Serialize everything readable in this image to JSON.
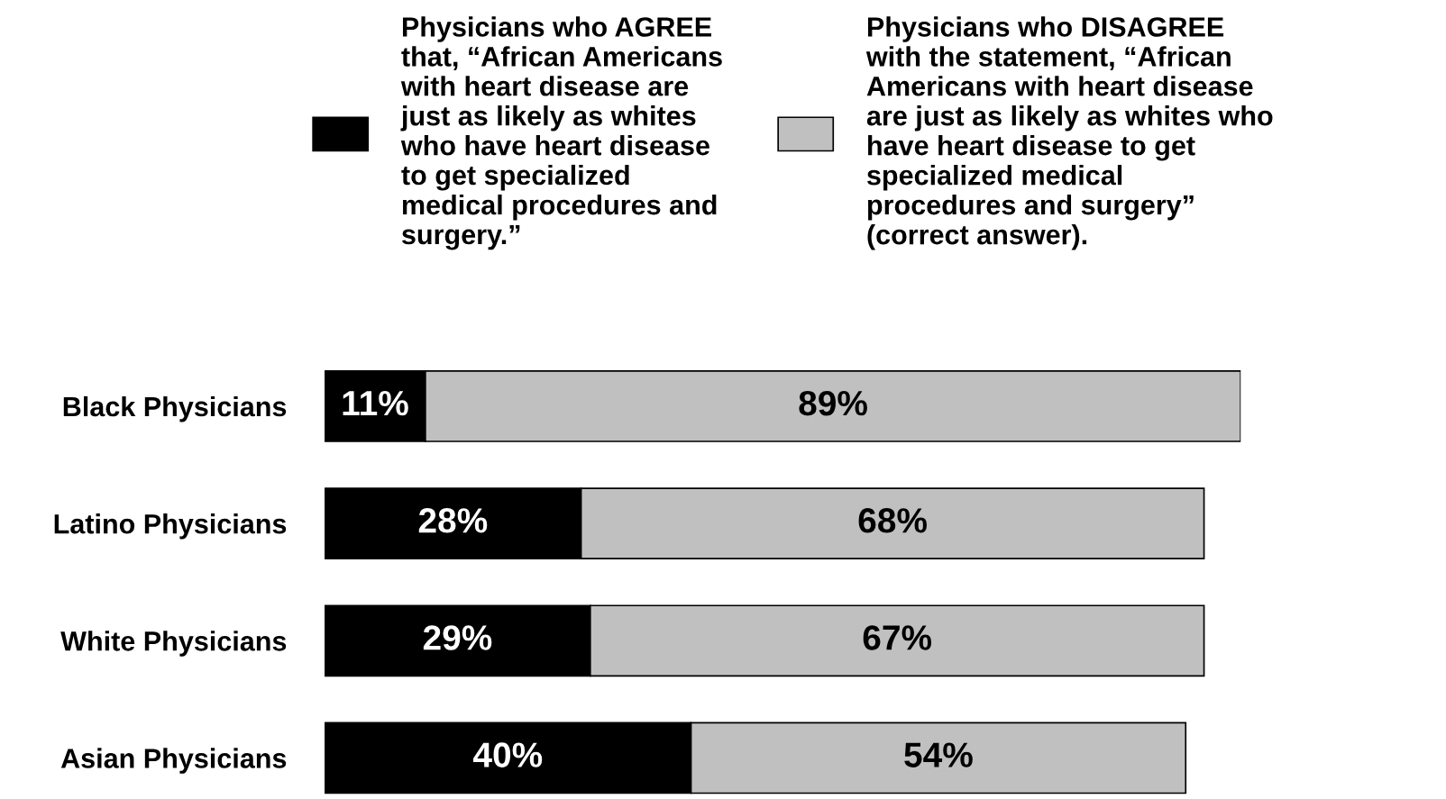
{
  "chart_data": {
    "type": "bar",
    "orientation": "horizontal",
    "stacked": true,
    "data_labels": true,
    "legend": "top",
    "grid": false,
    "categories": [
      "Black Physicians",
      "Latino Physicians",
      "White Physicians",
      "Asian Physicians"
    ],
    "series": [
      {
        "name": "Physicians who AGREE\nthat, “African Americans\nwith heart disease are\njust as likely as whites\nwho have heart disease\nto get specialized\nmedical procedures and\nsurgery.”",
        "color": "#000000",
        "values": [
          11,
          28,
          29,
          40
        ],
        "value_labels": [
          "11%",
          "28%",
          "29%",
          "40%"
        ]
      },
      {
        "name": "Physicians who DISAGREE\nwith the statement, “African\nAmericans with heart disease\nare just as likely as whites who\nhave heart disease to get\nspecialized medical\nprocedures and surgery”\n(correct answer).",
        "color": "#c0c0c0",
        "values": [
          89,
          68,
          67,
          54
        ],
        "value_labels": [
          "89%",
          "68%",
          "67%",
          "54%"
        ]
      }
    ]
  }
}
